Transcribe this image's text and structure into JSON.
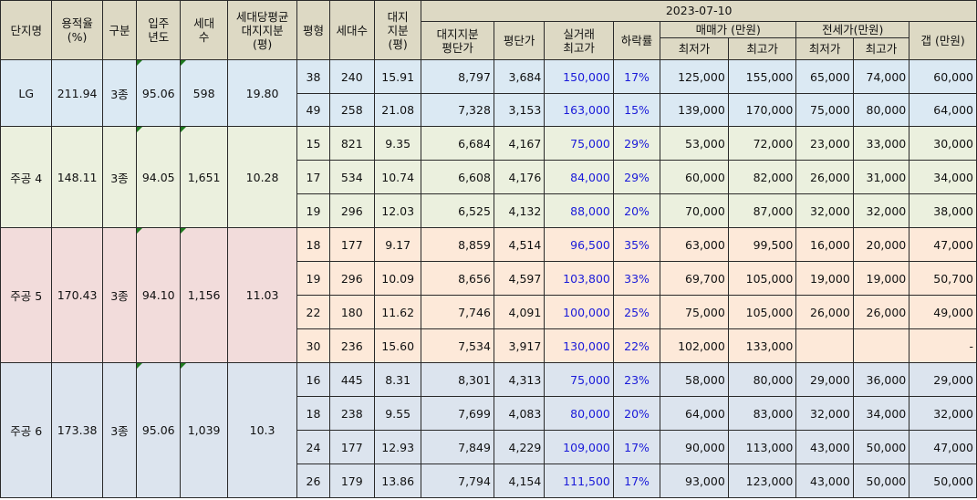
{
  "headers": {
    "complex": "단지명",
    "far": "용적율\n(%)",
    "zone": "구분",
    "year": "입주\n년도",
    "households": "세대\n수",
    "avg_land": "세대당평균\n대지지분\n(평)",
    "pyeong": "평형",
    "units": "세대수",
    "land_share": "대지\n지분\n(평)",
    "date": "2023-07-10",
    "land_price": "대지지분\n평단가",
    "price_per_pyeong": "평단가",
    "real_max": "실거래\n최고가",
    "drop_rate": "하락률",
    "sale_group": "매매가 (만원)",
    "jeonse_group": "전세가(만원)",
    "min": "최저가",
    "max": "최고가",
    "gap": "갭 (만원)"
  },
  "groups": [
    {
      "name": "LG",
      "far": "211.94",
      "zone": "3종",
      "year": "95.06",
      "households": "598",
      "avg_land": "19.80",
      "rows": [
        {
          "pyeong": "38",
          "units": "240",
          "land": "15.91",
          "land_price": "8,797",
          "ppp": "3,684",
          "real_max": "150,000",
          "drop": "17%",
          "sale_min": "125,000",
          "sale_max": "155,000",
          "j_min": "65,000",
          "j_max": "74,000",
          "gap": "60,000"
        },
        {
          "pyeong": "49",
          "units": "258",
          "land": "21.08",
          "land_price": "7,328",
          "ppp": "3,153",
          "real_max": "163,000",
          "drop": "15%",
          "sale_min": "139,000",
          "sale_max": "170,000",
          "j_min": "75,000",
          "j_max": "80,000",
          "gap": "64,000"
        }
      ]
    },
    {
      "name": "주공 4",
      "far": "148.11",
      "zone": "3종",
      "year": "94.05",
      "households": "1,651",
      "avg_land": "10.28",
      "rows": [
        {
          "pyeong": "15",
          "units": "821",
          "land": "9.35",
          "land_price": "6,684",
          "ppp": "4,167",
          "real_max": "75,000",
          "drop": "29%",
          "sale_min": "53,000",
          "sale_max": "72,000",
          "j_min": "23,000",
          "j_max": "33,000",
          "gap": "30,000"
        },
        {
          "pyeong": "17",
          "units": "534",
          "land": "10.74",
          "land_price": "6,608",
          "ppp": "4,176",
          "real_max": "84,000",
          "drop": "29%",
          "sale_min": "60,000",
          "sale_max": "82,000",
          "j_min": "26,000",
          "j_max": "31,000",
          "gap": "34,000"
        },
        {
          "pyeong": "19",
          "units": "296",
          "land": "12.03",
          "land_price": "6,525",
          "ppp": "4,132",
          "real_max": "88,000",
          "drop": "20%",
          "sale_min": "70,000",
          "sale_max": "87,000",
          "j_min": "32,000",
          "j_max": "32,000",
          "gap": "38,000"
        }
      ]
    },
    {
      "name": "주공 5",
      "far": "170.43",
      "zone": "3종",
      "year": "94.10",
      "households": "1,156",
      "avg_land": "11.03",
      "rows": [
        {
          "pyeong": "18",
          "units": "177",
          "land": "9.17",
          "land_price": "8,859",
          "ppp": "4,514",
          "real_max": "96,500",
          "drop": "35%",
          "sale_min": "63,000",
          "sale_max": "99,500",
          "j_min": "16,000",
          "j_max": "20,000",
          "gap": "47,000"
        },
        {
          "pyeong": "19",
          "units": "296",
          "land": "10.09",
          "land_price": "8,656",
          "ppp": "4,597",
          "real_max": "103,800",
          "drop": "33%",
          "sale_min": "69,700",
          "sale_max": "105,000",
          "j_min": "19,000",
          "j_max": "19,000",
          "gap": "50,700"
        },
        {
          "pyeong": "22",
          "units": "180",
          "land": "11.62",
          "land_price": "7,746",
          "ppp": "4,091",
          "real_max": "100,000",
          "drop": "25%",
          "sale_min": "75,000",
          "sale_max": "105,000",
          "j_min": "26,000",
          "j_max": "26,000",
          "gap": "49,000"
        },
        {
          "pyeong": "30",
          "units": "236",
          "land": "15.60",
          "land_price": "7,534",
          "ppp": "3,917",
          "real_max": "130,000",
          "drop": "22%",
          "sale_min": "102,000",
          "sale_max": "133,000",
          "j_min": "",
          "j_max": "",
          "gap": "-"
        }
      ]
    },
    {
      "name": "주공 6",
      "far": "173.38",
      "zone": "3종",
      "year": "95.06",
      "households": "1,039",
      "avg_land": "10.3",
      "rows": [
        {
          "pyeong": "16",
          "units": "445",
          "land": "8.31",
          "land_price": "8,301",
          "ppp": "4,313",
          "real_max": "75,000",
          "drop": "23%",
          "sale_min": "58,000",
          "sale_max": "80,000",
          "j_min": "29,000",
          "j_max": "36,000",
          "gap": "29,000"
        },
        {
          "pyeong": "18",
          "units": "238",
          "land": "9.55",
          "land_price": "7,699",
          "ppp": "4,083",
          "real_max": "80,000",
          "drop": "20%",
          "sale_min": "64,000",
          "sale_max": "83,000",
          "j_min": "32,000",
          "j_max": "34,000",
          "gap": "32,000"
        },
        {
          "pyeong": "24",
          "units": "177",
          "land": "12.93",
          "land_price": "7,849",
          "ppp": "4,229",
          "real_max": "109,000",
          "drop": "17%",
          "sale_min": "90,000",
          "sale_max": "113,000",
          "j_min": "43,000",
          "j_max": "50,000",
          "gap": "47,000"
        },
        {
          "pyeong": "26",
          "units": "179",
          "land": "13.86",
          "land_price": "7,794",
          "ppp": "4,154",
          "real_max": "111,500",
          "drop": "17%",
          "sale_min": "93,000",
          "sale_max": "123,000",
          "j_min": "43,000",
          "j_max": "50,000",
          "gap": "50,000"
        }
      ]
    }
  ]
}
